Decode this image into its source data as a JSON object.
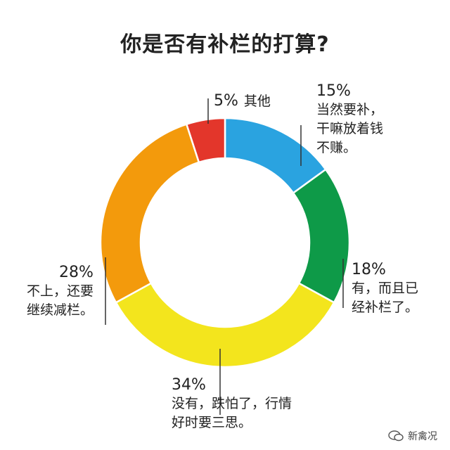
{
  "chart_data": {
    "type": "pie",
    "title": "你是否有补栏的打算?",
    "slices": [
      {
        "percent": 15,
        "label_lines": [
          "当然要补，",
          "干嘛放着钱",
          "不赚。"
        ],
        "color": "#2aa3e0"
      },
      {
        "percent": 18,
        "label_lines": [
          "有，而且已",
          "经补栏了。"
        ],
        "color": "#0e9a48"
      },
      {
        "percent": 34,
        "label_lines": [
          "没有，跌怕了，行情",
          "好时要三思。"
        ],
        "color": "#f3e51d"
      },
      {
        "percent": 28,
        "label_lines": [
          "不上，还要",
          "继续减栏。"
        ],
        "color": "#f39a0c"
      },
      {
        "percent": 5,
        "label_lines": [
          "其他"
        ],
        "color": "#e3362b"
      }
    ]
  },
  "pct_texts": [
    "15%",
    "18%",
    "34%",
    "28%",
    "5%"
  ],
  "watermark": "新禽况"
}
